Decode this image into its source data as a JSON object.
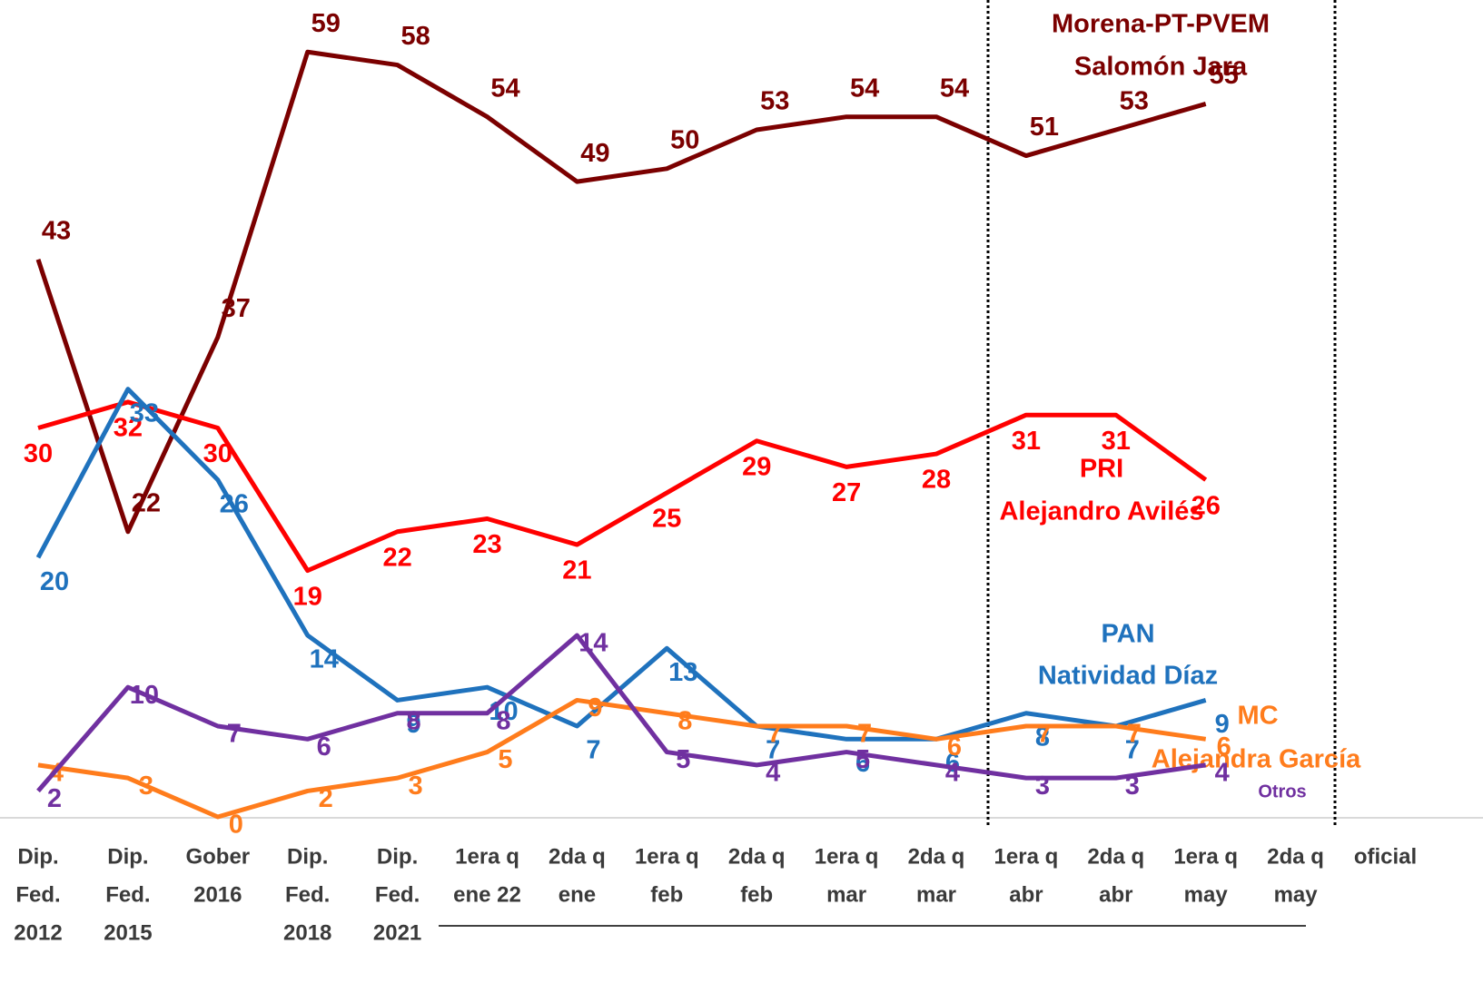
{
  "chart_data": {
    "type": "line",
    "categories": [
      [
        "Dip.",
        "Fed.",
        "2012"
      ],
      [
        "Dip.",
        "Fed.",
        "2015"
      ],
      [
        "Gober",
        "2016"
      ],
      [
        "Dip.",
        "Fed.",
        "2018"
      ],
      [
        "Dip.",
        "Fed.",
        "2021"
      ],
      [
        "1era q",
        "ene 22"
      ],
      [
        "2da q",
        "ene"
      ],
      [
        "1era q",
        "feb"
      ],
      [
        "2da q",
        "feb"
      ],
      [
        "1era q",
        "mar"
      ],
      [
        "2da q",
        "mar"
      ],
      [
        "1era q",
        "abr"
      ],
      [
        "2da q",
        "abr"
      ],
      [
        "1era q",
        "may"
      ],
      [
        "2da q",
        "may"
      ],
      [
        "oficial"
      ]
    ],
    "ylim": [
      0,
      60
    ],
    "series": [
      {
        "name": [
          "Morena-PT-PVEM",
          "Salomón Jara"
        ],
        "color": "#7b0000",
        "values": [
          43,
          22,
          37,
          59,
          58,
          54,
          49,
          50,
          53,
          54,
          54,
          51,
          53,
          55,
          null,
          null
        ]
      },
      {
        "name": [
          "PRI",
          "Alejandro Avilés"
        ],
        "color": "#ff0000",
        "values": [
          30,
          32,
          30,
          19,
          22,
          23,
          21,
          25,
          29,
          27,
          28,
          31,
          31,
          26,
          null,
          null
        ]
      },
      {
        "name": [
          "PAN",
          "Natividad Díaz"
        ],
        "color": "#1f72bd",
        "values": [
          20,
          33,
          26,
          14,
          9,
          10,
          7,
          13,
          7,
          6,
          6,
          8,
          7,
          9,
          null,
          null
        ]
      },
      {
        "name": [
          "MC",
          "Alejandra García"
        ],
        "color": "#ff7c1c",
        "values": [
          4,
          3,
          0,
          2,
          3,
          5,
          9,
          8,
          7,
          7,
          6,
          7,
          7,
          6,
          null,
          null
        ]
      },
      {
        "name": [
          "Otros"
        ],
        "color": "#7030a0",
        "values": [
          2,
          10,
          7,
          6,
          8,
          8,
          14,
          5,
          4,
          5,
          4,
          3,
          3,
          4,
          null,
          null
        ]
      }
    ]
  }
}
